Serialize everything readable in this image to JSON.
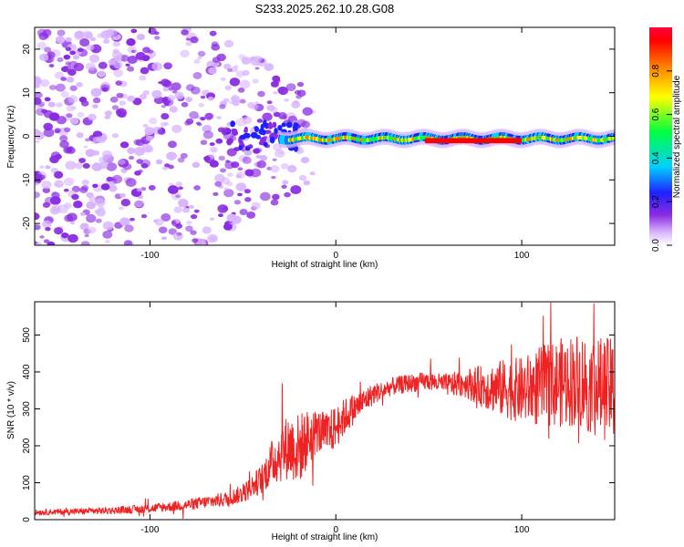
{
  "title": "S233.2025.262.10.28.G08",
  "colors": {
    "snr_line": "#ee2222",
    "axis": "#000000",
    "background": "#ffffff"
  },
  "chart_data": [
    {
      "type": "heatmap",
      "xlabel": "Height of straight line (km)",
      "ylabel": "Frequency (Hz)",
      "xlim": [
        -162,
        150
      ],
      "ylim": [
        -25,
        25
      ],
      "x_ticks": [
        -100,
        0,
        100
      ],
      "y_ticks": [
        -20,
        -10,
        0,
        10,
        20
      ],
      "x_tick_labels": [
        "-100",
        "0",
        "100"
      ],
      "y_tick_labels": [
        "-20",
        "-10",
        "0",
        "10",
        "20"
      ],
      "colorbar": {
        "label": "Normalized spectral amplitude",
        "range": [
          0,
          1
        ],
        "ticks": [
          "0.0",
          "0.2",
          "0.4",
          "0.6",
          "0.8"
        ],
        "tick_values": [
          0,
          0.2,
          0.4,
          0.6,
          0.8
        ],
        "colors": [
          "#ffffff",
          "#d8b4ff",
          "#8a2be2",
          "#2020ff",
          "#00d0ff",
          "#00ff40",
          "#ffff00",
          "#ff8000",
          "#ff0000",
          "#ff0040"
        ]
      },
      "description_points": {
        "ridge_x": [
          -30,
          150
        ],
        "ridge_freq": [
          0,
          -1
        ],
        "scatter_region_x": [
          -162,
          -25
        ],
        "scatter_region_freq": [
          -25,
          25
        ]
      }
    },
    {
      "type": "line",
      "xlabel": "Height of straight line (km)",
      "ylabel": "SNR (10 * v/v)",
      "xlim": [
        -162,
        150
      ],
      "ylim": [
        0,
        590
      ],
      "x_ticks": [
        -100,
        0,
        100
      ],
      "y_ticks": [
        0,
        100,
        200,
        300,
        400,
        500
      ],
      "x_tick_labels": [
        "-100",
        "0",
        "100"
      ],
      "y_tick_labels": [
        "0",
        "100",
        "200",
        "300",
        "400",
        "500"
      ],
      "series": [
        {
          "name": "SNR",
          "x": [
            -162,
            -140,
            -120,
            -100,
            -80,
            -60,
            -50,
            -40,
            -35,
            -30,
            -25,
            -20,
            -15,
            -10,
            -5,
            0,
            5,
            10,
            15,
            20,
            25,
            30,
            40,
            50,
            60,
            70,
            80,
            90,
            100,
            110,
            120,
            130,
            140,
            150
          ],
          "values": [
            20,
            22,
            25,
            30,
            40,
            55,
            70,
            110,
            150,
            180,
            200,
            190,
            220,
            240,
            230,
            250,
            280,
            300,
            320,
            340,
            350,
            360,
            370,
            375,
            365,
            370,
            360,
            355,
            350,
            360,
            370,
            380,
            360,
            350
          ],
          "noise_amp": [
            8,
            8,
            10,
            12,
            15,
            20,
            25,
            40,
            60,
            80,
            90,
            100,
            80,
            60,
            60,
            60,
            50,
            40,
            35,
            30,
            25,
            25,
            25,
            25,
            30,
            40,
            60,
            80,
            90,
            110,
            120,
            130,
            140,
            140
          ]
        }
      ]
    }
  ]
}
